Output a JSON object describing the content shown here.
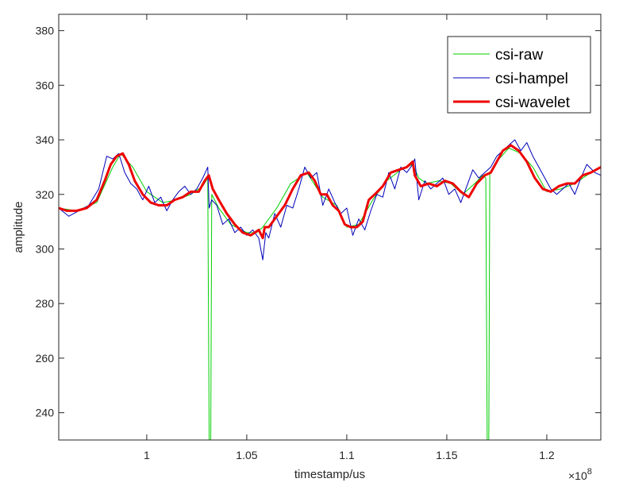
{
  "chart_data": {
    "type": "line",
    "xlabel": "timestamp/us",
    "ylabel": "amplitude",
    "x_exponent_label": "×10",
    "x_exponent_power": "8",
    "x_scale": 100000000,
    "xlim": [
      0.956,
      1.227
    ],
    "ylim": [
      230,
      386
    ],
    "x_ticks": [
      1,
      1.05,
      1.1,
      1.15,
      1.2
    ],
    "x_tick_labels": [
      "1",
      "1.05",
      "1.1",
      "1.15",
      "1.2"
    ],
    "y_ticks": [
      240,
      260,
      280,
      300,
      320,
      340,
      360,
      380
    ],
    "y_tick_labels": [
      "240",
      "260",
      "280",
      "300",
      "320",
      "340",
      "360",
      "380"
    ],
    "legend_position": "top-right",
    "series": [
      {
        "name": "csi-raw",
        "color": "#00d000",
        "x": [
          0.956,
          0.965,
          0.975,
          0.983,
          0.987,
          0.993,
          1.0,
          1.008,
          1.015,
          1.022,
          1.028,
          1.0305,
          1.0312,
          1.032,
          1.0325,
          1.036,
          1.042,
          1.05,
          1.055,
          1.058,
          1.065,
          1.072,
          1.08,
          1.088,
          1.095,
          1.1,
          1.106,
          1.113,
          1.12,
          1.127,
          1.133,
          1.136,
          1.14,
          1.146,
          1.152,
          1.158,
          1.164,
          1.168,
          1.1695,
          1.1702,
          1.171,
          1.1715,
          1.175,
          1.181,
          1.187,
          1.193,
          1.2,
          1.207,
          1.214,
          1.22,
          1.227
        ],
        "values": [
          315,
          314,
          317,
          330,
          335,
          330,
          321,
          317,
          318,
          320,
          323,
          326,
          230,
          230,
          320,
          315,
          309,
          306,
          306,
          308,
          315,
          324,
          328,
          319,
          316,
          308,
          309,
          318,
          325,
          329,
          331,
          326,
          324,
          325,
          324,
          320,
          324,
          327,
          326,
          230,
          230,
          328,
          332,
          337,
          335,
          330,
          321,
          322,
          324,
          327,
          330
        ]
      },
      {
        "name": "csi-hampel",
        "color": "#0000bb",
        "x": [
          0.956,
          0.961,
          0.966,
          0.971,
          0.976,
          0.98,
          0.983,
          0.986,
          0.989,
          0.992,
          0.995,
          0.998,
          1.001,
          1.004,
          1.007,
          1.01,
          1.013,
          1.016,
          1.019,
          1.022,
          1.025,
          1.028,
          1.0305,
          1.0312,
          1.0325,
          1.035,
          1.038,
          1.041,
          1.044,
          1.047,
          1.05,
          1.053,
          1.056,
          1.058,
          1.0595,
          1.061,
          1.064,
          1.067,
          1.07,
          1.073,
          1.076,
          1.079,
          1.082,
          1.085,
          1.088,
          1.091,
          1.094,
          1.097,
          1.1,
          1.103,
          1.106,
          1.109,
          1.112,
          1.115,
          1.118,
          1.121,
          1.124,
          1.127,
          1.13,
          1.133,
          1.134,
          1.136,
          1.139,
          1.142,
          1.145,
          1.148,
          1.151,
          1.154,
          1.157,
          1.16,
          1.163,
          1.166,
          1.169,
          1.172,
          1.175,
          1.178,
          1.181,
          1.184,
          1.187,
          1.19,
          1.193,
          1.196,
          1.199,
          1.202,
          1.205,
          1.208,
          1.211,
          1.214,
          1.217,
          1.22,
          1.224,
          1.227
        ],
        "values": [
          315,
          312,
          314,
          316,
          322,
          334,
          333,
          335,
          328,
          324,
          322,
          318,
          323,
          317,
          319,
          314,
          318,
          321,
          323,
          320,
          322,
          326,
          330,
          315,
          318,
          316,
          309,
          311,
          306,
          308,
          305,
          307,
          304,
          296,
          306,
          304,
          313,
          308,
          316,
          315,
          322,
          330,
          326,
          328,
          316,
          322,
          317,
          313,
          315,
          305,
          311,
          307,
          314,
          320,
          319,
          328,
          322,
          330,
          328,
          331,
          333,
          318,
          325,
          322,
          324,
          326,
          320,
          322,
          317,
          323,
          329,
          326,
          328,
          330,
          334,
          336,
          338,
          340,
          336,
          339,
          334,
          330,
          326,
          322,
          320,
          322,
          324,
          320,
          326,
          331,
          328,
          327
        ]
      },
      {
        "name": "csi-wavelet",
        "color": "#ee0000",
        "x": [
          0.956,
          0.96,
          0.965,
          0.97,
          0.975,
          0.979,
          0.982,
          0.985,
          0.988,
          0.991,
          0.994,
          0.998,
          1.002,
          1.006,
          1.01,
          1.014,
          1.018,
          1.022,
          1.026,
          1.029,
          1.031,
          1.033,
          1.036,
          1.04,
          1.044,
          1.048,
          1.052,
          1.056,
          1.058,
          1.059,
          1.061,
          1.065,
          1.069,
          1.073,
          1.077,
          1.081,
          1.084,
          1.087,
          1.09,
          1.093,
          1.096,
          1.099,
          1.102,
          1.105,
          1.108,
          1.111,
          1.114,
          1.118,
          1.122,
          1.126,
          1.13,
          1.133,
          1.134,
          1.137,
          1.141,
          1.145,
          1.149,
          1.153,
          1.157,
          1.161,
          1.165,
          1.169,
          1.172,
          1.175,
          1.178,
          1.182,
          1.186,
          1.19,
          1.194,
          1.198,
          1.202,
          1.206,
          1.21,
          1.214,
          1.218,
          1.222,
          1.227
        ],
        "values": [
          315,
          314,
          314,
          315,
          318,
          325,
          331,
          334,
          335,
          331,
          325,
          320,
          317,
          316,
          316,
          318,
          319,
          321,
          321,
          325,
          327,
          322,
          318,
          313,
          309,
          306,
          305,
          307,
          304,
          308,
          308,
          312,
          316,
          322,
          327,
          328,
          325,
          320,
          320,
          316,
          314,
          309,
          308,
          308,
          310,
          318,
          320,
          323,
          328,
          329,
          330,
          332,
          327,
          323,
          324,
          323,
          325,
          324,
          321,
          319,
          324,
          327,
          328,
          332,
          336,
          338,
          336,
          332,
          326,
          322,
          321,
          323,
          324,
          324,
          327,
          328,
          330
        ]
      }
    ]
  }
}
